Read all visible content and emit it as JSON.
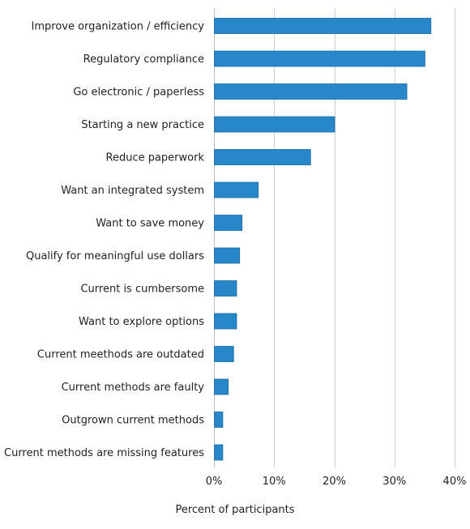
{
  "chart_data": {
    "type": "bar",
    "orientation": "horizontal",
    "categories": [
      "Improve organization / efficiency",
      "Regulatory compliance",
      "Go electronic / paperless",
      "Starting a new practice",
      "Reduce paperwork",
      "Want an integrated system",
      "Want to save money",
      "Qualify for meaningful use dollars",
      "Current is cumbersome",
      "Want to explore options",
      "Current meethods are outdated",
      "Current methods are faulty",
      "Outgrown current methods",
      "Current methods are missing features"
    ],
    "values": [
      36,
      35,
      32,
      20,
      16,
      7.3,
      4.6,
      4.2,
      3.7,
      3.7,
      3.2,
      2.3,
      1.4,
      1.4
    ],
    "unit": "%",
    "xlim": [
      0,
      40
    ],
    "xticks": [
      0,
      10,
      20,
      30,
      40
    ],
    "xtick_labels": [
      "0%",
      "10%",
      "20%",
      "30%",
      "40%"
    ],
    "xlabel": "Percent of participants",
    "ylabel": "",
    "title": "",
    "grid": "vertical",
    "bar_color": "#2787c8",
    "legend": "none"
  }
}
